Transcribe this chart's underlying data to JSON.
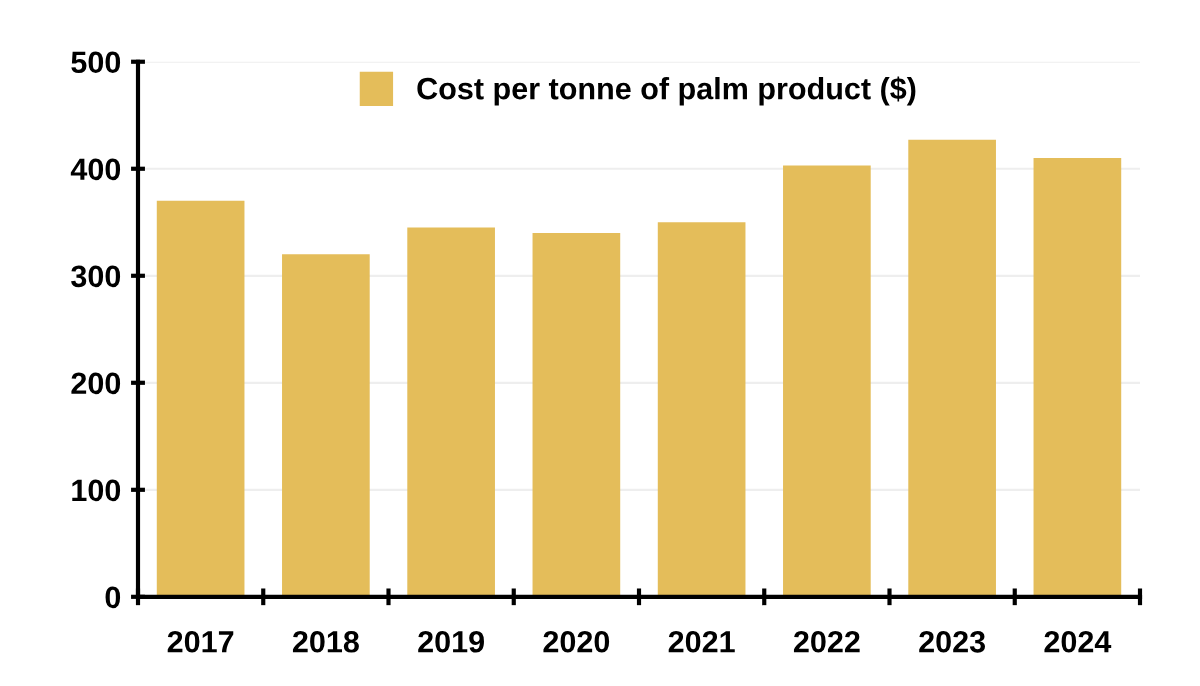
{
  "chart_data": {
    "type": "bar",
    "categories": [
      "2017",
      "2018",
      "2019",
      "2020",
      "2021",
      "2022",
      "2023",
      "2024"
    ],
    "series": [
      {
        "name": "Cost per tonne of palm product ($)",
        "color": "#e4bd5a",
        "values": [
          370,
          320,
          345,
          340,
          350,
          403,
          427,
          410
        ]
      }
    ],
    "ylim": [
      0,
      500
    ],
    "yticks": [
      0,
      100,
      200,
      300,
      400,
      500
    ],
    "grid": "y",
    "legend": "top"
  }
}
